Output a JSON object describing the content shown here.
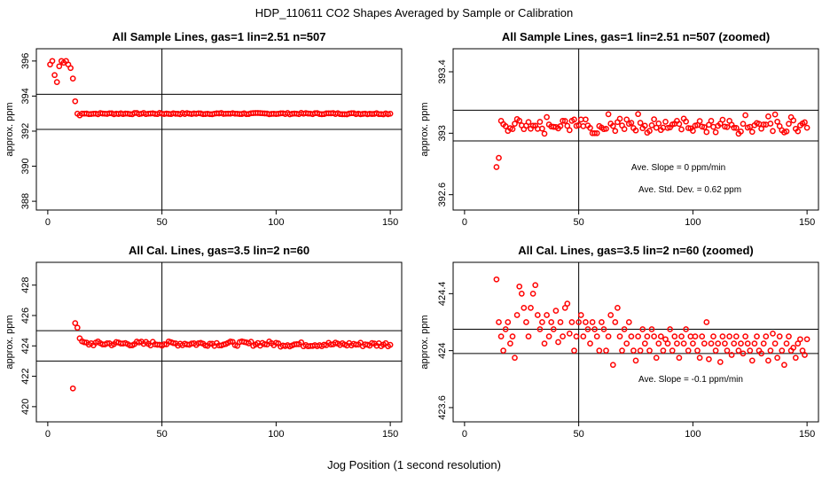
{
  "page": {
    "title": "HDP_110611  CO2 Shapes Averaged by Sample or Calibration",
    "xlabel": "Jog Position (1 second resolution)"
  },
  "chart_data": [
    {
      "id": "p1",
      "type": "scatter",
      "title": "All Sample Lines, gas=1 lin=2.51 n=507",
      "ylabel": "approx. ppm",
      "xlim": [
        -5,
        155
      ],
      "ylim": [
        387.5,
        396.7
      ],
      "xticks": [
        0,
        50,
        100,
        150
      ],
      "yticks": [
        388,
        390,
        392,
        394,
        396
      ],
      "hlines": [
        394.1,
        392.1
      ],
      "vline": 50,
      "annotations": [],
      "points": [
        [
          1,
          395.8
        ],
        [
          2,
          396.0
        ],
        [
          3,
          395.2
        ],
        [
          4,
          394.8
        ],
        [
          5,
          395.7
        ],
        [
          6,
          396.0
        ],
        [
          7,
          395.9
        ],
        [
          8,
          396.0
        ],
        [
          9,
          395.8
        ],
        [
          10,
          395.6
        ],
        [
          11,
          395.0
        ],
        [
          12,
          393.7
        ],
        [
          13,
          393.0
        ],
        [
          14,
          392.9
        ],
        [
          15,
          393.0
        ]
      ]
    },
    {
      "id": "p2",
      "type": "scatter",
      "title": "All Sample Lines, gas=1 lin=2.51 n=507 (zoomed)",
      "ylabel": "approx. ppm",
      "xlim": [
        -5,
        155
      ],
      "ylim": [
        392.5,
        393.55
      ],
      "xticks": [
        0,
        50,
        100,
        150
      ],
      "yticks": [
        392.6,
        393.0,
        393.4
      ],
      "hlines": [
        393.15,
        392.95
      ],
      "vline": 50,
      "annotations": [
        "Ave. Slope =  0  ppm/min",
        "Ave. Std. Dev. =  0.62  ppm"
      ],
      "points": [
        [
          14,
          392.78
        ],
        [
          15,
          392.84
        ]
      ]
    },
    {
      "id": "p3",
      "type": "scatter",
      "title": "All Cal. Lines, gas=3.5 lin=2 n=60",
      "ylabel": "approx. ppm",
      "xlim": [
        -5,
        155
      ],
      "ylim": [
        419.0,
        429.5
      ],
      "xticks": [
        0,
        50,
        100,
        150
      ],
      "yticks": [
        420,
        422,
        424,
        426,
        428
      ],
      "hlines": [
        425.0,
        423.0
      ],
      "vline": 50,
      "annotations": [],
      "points": [
        [
          11,
          421.2
        ],
        [
          12,
          425.5
        ],
        [
          13,
          425.2
        ],
        [
          14,
          424.5
        ],
        [
          15,
          424.3
        ]
      ]
    },
    {
      "id": "p4",
      "type": "scatter",
      "title": "All Cal. Lines, gas=3.5 lin=2 n=60 (zoomed)",
      "ylabel": "approx. ppm",
      "xlim": [
        -5,
        155
      ],
      "ylim": [
        423.5,
        424.62
      ],
      "xticks": [
        0,
        50,
        100,
        150
      ],
      "yticks": [
        423.6,
        424.0,
        424.4
      ],
      "hlines": [
        424.15,
        423.98
      ],
      "vline": 50,
      "annotations": [
        "Ave. Slope =  -0.1  ppm/min"
      ],
      "points": [
        [
          14,
          424.5
        ],
        [
          15,
          424.2
        ],
        [
          16,
          424.1
        ],
        [
          17,
          424.0
        ],
        [
          18,
          424.15
        ],
        [
          19,
          424.2
        ],
        [
          20,
          424.05
        ],
        [
          21,
          424.1
        ],
        [
          22,
          423.95
        ],
        [
          23,
          424.25
        ],
        [
          24,
          424.45
        ],
        [
          25,
          424.4
        ],
        [
          26,
          424.3
        ],
        [
          27,
          424.2
        ],
        [
          28,
          424.1
        ],
        [
          29,
          424.3
        ],
        [
          30,
          424.4
        ],
        [
          31,
          424.46
        ],
        [
          32,
          424.25
        ],
        [
          33,
          424.15
        ],
        [
          34,
          424.2
        ],
        [
          35,
          424.05
        ],
        [
          36,
          424.25
        ],
        [
          37,
          424.1
        ],
        [
          38,
          424.2
        ],
        [
          39,
          424.15
        ],
        [
          40,
          424.28
        ],
        [
          41,
          424.06
        ],
        [
          42,
          424.2
        ],
        [
          43,
          424.1
        ],
        [
          44,
          424.3
        ],
        [
          45,
          424.33
        ],
        [
          46,
          424.12
        ],
        [
          47,
          424.2
        ],
        [
          48,
          424.0
        ],
        [
          49,
          424.1
        ],
        [
          50,
          424.2
        ],
        [
          51,
          424.25
        ],
        [
          52,
          424.1
        ],
        [
          53,
          424.2
        ],
        [
          54,
          424.15
        ],
        [
          55,
          424.05
        ],
        [
          56,
          424.2
        ],
        [
          57,
          424.15
        ],
        [
          58,
          424.1
        ],
        [
          59,
          424.0
        ],
        [
          60,
          424.2
        ],
        [
          61,
          424.15
        ],
        [
          62,
          424.0
        ],
        [
          63,
          424.1
        ],
        [
          64,
          424.25
        ],
        [
          65,
          423.9
        ],
        [
          66,
          424.2
        ],
        [
          67,
          424.3
        ],
        [
          68,
          424.1
        ],
        [
          69,
          424.0
        ],
        [
          70,
          424.15
        ],
        [
          71,
          424.05
        ],
        [
          72,
          424.2
        ],
        [
          73,
          424.1
        ],
        [
          74,
          424.0
        ],
        [
          75,
          423.93
        ],
        [
          76,
          424.1
        ],
        [
          77,
          424.0
        ],
        [
          78,
          424.15
        ],
        [
          79,
          424.05
        ],
        [
          80,
          424.1
        ],
        [
          81,
          424.0
        ],
        [
          82,
          424.15
        ],
        [
          83,
          424.1
        ],
        [
          84,
          423.95
        ],
        [
          85,
          424.05
        ],
        [
          86,
          424.1
        ],
        [
          87,
          424.0
        ],
        [
          88,
          424.08
        ],
        [
          89,
          424.05
        ],
        [
          90,
          424.15
        ],
        [
          91,
          424.0
        ],
        [
          92,
          424.1
        ],
        [
          93,
          424.05
        ],
        [
          94,
          423.95
        ],
        [
          95,
          424.1
        ],
        [
          96,
          424.05
        ],
        [
          97,
          424.15
        ],
        [
          98,
          424.0
        ],
        [
          99,
          424.1
        ],
        [
          100,
          424.05
        ],
        [
          101,
          424.1
        ],
        [
          102,
          424.0
        ],
        [
          103,
          423.95
        ],
        [
          104,
          424.1
        ],
        [
          105,
          424.05
        ],
        [
          106,
          424.2
        ],
        [
          107,
          423.94
        ],
        [
          108,
          424.05
        ],
        [
          109,
          424.1
        ],
        [
          110,
          424.0
        ],
        [
          111,
          424.05
        ],
        [
          112,
          423.92
        ],
        [
          113,
          424.1
        ],
        [
          114,
          424.05
        ],
        [
          115,
          424.0
        ],
        [
          116,
          424.1
        ],
        [
          117,
          423.97
        ],
        [
          118,
          424.05
        ],
        [
          119,
          424.1
        ],
        [
          120,
          424.0
        ],
        [
          121,
          424.05
        ],
        [
          122,
          423.98
        ],
        [
          123,
          424.1
        ],
        [
          124,
          424.05
        ],
        [
          125,
          424.0
        ],
        [
          126,
          423.93
        ],
        [
          127,
          424.05
        ],
        [
          128,
          424.1
        ],
        [
          129,
          424.0
        ],
        [
          130,
          423.98
        ],
        [
          131,
          424.05
        ],
        [
          132,
          424.1
        ],
        [
          133,
          423.93
        ],
        [
          134,
          424.0
        ],
        [
          135,
          424.12
        ],
        [
          136,
          424.05
        ],
        [
          137,
          423.95
        ],
        [
          138,
          424.1
        ],
        [
          139,
          424.0
        ],
        [
          140,
          423.9
        ],
        [
          141,
          424.05
        ],
        [
          142,
          424.1
        ],
        [
          143,
          424.0
        ],
        [
          144,
          424.02
        ],
        [
          145,
          423.95
        ],
        [
          146,
          424.05
        ],
        [
          147,
          424.08
        ],
        [
          148,
          424.0
        ],
        [
          149,
          423.97
        ],
        [
          150,
          424.08
        ]
      ]
    }
  ]
}
